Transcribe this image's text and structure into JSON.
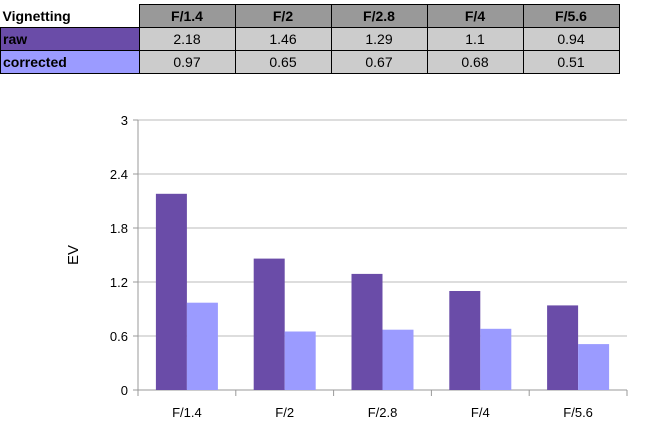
{
  "table": {
    "corner_label": "Vignetting",
    "columns": [
      "F/1.4",
      "F/2",
      "F/2.8",
      "F/4",
      "F/5.6"
    ],
    "rows": [
      {
        "label": "raw",
        "values": [
          "2.18",
          "1.46",
          "1.29",
          "1.1",
          "0.94"
        ],
        "color": "#6a4ca8"
      },
      {
        "label": "corrected",
        "values": [
          "0.97",
          "0.65",
          "0.67",
          "0.68",
          "0.51"
        ],
        "color": "#9b9bff"
      }
    ]
  },
  "chart_data": {
    "type": "bar",
    "categories": [
      "F/1.4",
      "F/2",
      "F/2.8",
      "F/4",
      "F/5.6"
    ],
    "series": [
      {
        "name": "raw",
        "values": [
          2.18,
          1.46,
          1.29,
          1.1,
          0.94
        ],
        "color": "#6a4ca8"
      },
      {
        "name": "corrected",
        "values": [
          0.97,
          0.65,
          0.67,
          0.68,
          0.51
        ],
        "color": "#9b9bff"
      }
    ],
    "title": "",
    "xlabel": "",
    "ylabel": "EV",
    "ylim": [
      0,
      3
    ],
    "yticks": [
      "0",
      "0.6",
      "1.2",
      "1.8",
      "2.4",
      "3"
    ],
    "grid": true,
    "legend": "none"
  }
}
